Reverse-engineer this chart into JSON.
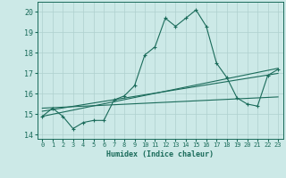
{
  "xlabel": "Humidex (Indice chaleur)",
  "ylabel": "",
  "xlim": [
    -0.5,
    23.5
  ],
  "ylim": [
    13.8,
    20.5
  ],
  "xticks": [
    0,
    1,
    2,
    3,
    4,
    5,
    6,
    7,
    8,
    9,
    10,
    11,
    12,
    13,
    14,
    15,
    16,
    17,
    18,
    19,
    20,
    21,
    22,
    23
  ],
  "yticks": [
    14,
    15,
    16,
    17,
    18,
    19,
    20
  ],
  "bg_color": "#cce9e7",
  "grid_color": "#aed0ce",
  "line_color": "#1a6b5a",
  "series1_x": [
    0,
    1,
    2,
    3,
    4,
    5,
    6,
    7,
    8,
    9,
    10,
    11,
    12,
    13,
    14,
    15,
    16,
    17,
    18,
    19,
    20,
    21,
    22,
    23
  ],
  "series1_y": [
    14.9,
    15.3,
    14.9,
    14.3,
    14.6,
    14.7,
    14.7,
    15.7,
    15.9,
    16.4,
    17.9,
    18.3,
    19.7,
    19.3,
    19.7,
    20.1,
    19.3,
    17.5,
    16.8,
    15.8,
    15.5,
    15.4,
    16.9,
    17.2
  ],
  "series2_x": [
    0,
    23
  ],
  "series2_y": [
    15.15,
    17.0
  ],
  "series3_x": [
    0,
    23
  ],
  "series3_y": [
    14.9,
    17.25
  ],
  "series4_x": [
    0,
    23
  ],
  "series4_y": [
    15.3,
    15.85
  ]
}
